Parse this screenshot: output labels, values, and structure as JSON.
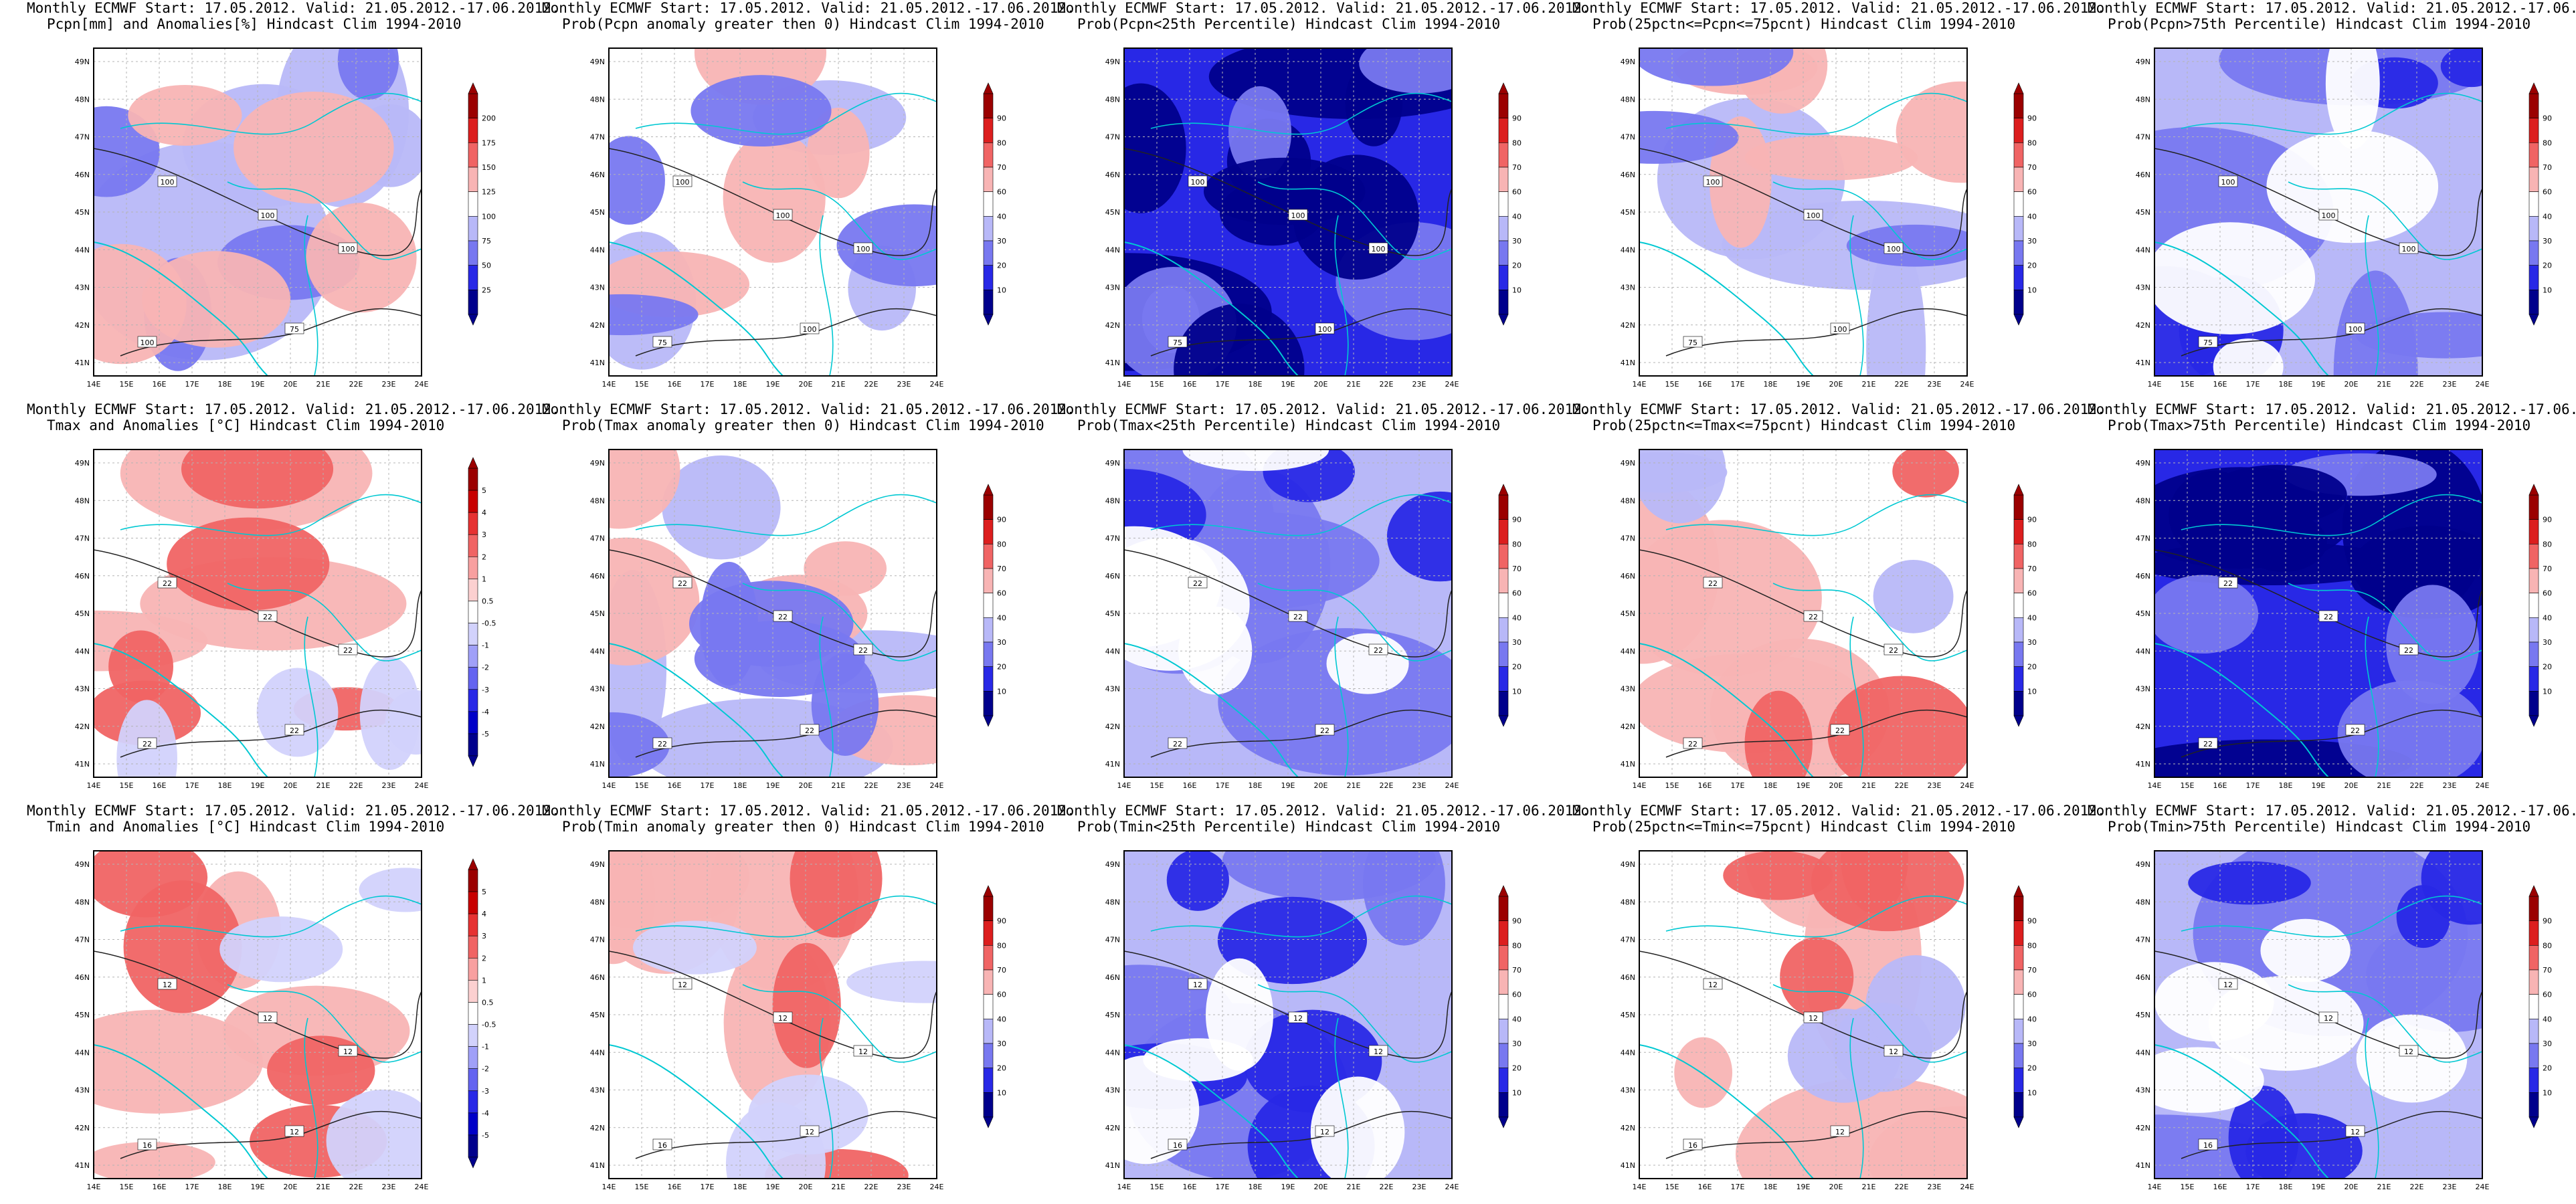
{
  "figure": {
    "header": "Monthly ECMWF Start: 17.05.2012. Valid: 21.05.2012.-17.06.2012.",
    "x_ticks": [
      "14E",
      "15E",
      "16E",
      "17E",
      "18E",
      "19E",
      "20E",
      "21E",
      "22E",
      "23E",
      "24E"
    ],
    "y_ticks": [
      "41N",
      "42N",
      "43N",
      "44N",
      "45N",
      "46N",
      "47N",
      "48N",
      "49N"
    ],
    "colors": {
      "lake": "#00c8d2",
      "contour": "#222222",
      "frame": "#000000",
      "grid": "#b4b4b4"
    },
    "legends": {
      "prob": {
        "labels": [
          "90",
          "80",
          "70",
          "60",
          "40",
          "30",
          "20",
          "10"
        ],
        "colors": [
          "#9b0000",
          "#dc1e1e",
          "#f06464",
          "#f8b4b4",
          "#ffffff",
          "#b8b8f8",
          "#7878f0",
          "#2828e6",
          "#00008c"
        ]
      },
      "pcpn": {
        "labels": [
          "200",
          "175",
          "150",
          "125",
          "100",
          "75",
          "50",
          "25"
        ],
        "colors": [
          "#9b0000",
          "#dc1e1e",
          "#f06464",
          "#f8b4b4",
          "#ffffff",
          "#b8b8f8",
          "#7878f0",
          "#2828e6",
          "#00008c"
        ]
      },
      "temp": {
        "labels": [
          "5",
          "4",
          "3",
          "2",
          "1",
          "0.5",
          "-0.5",
          "-1",
          "-2",
          "-3",
          "-4",
          "-5"
        ],
        "colors": [
          "#9b0000",
          "#c80000",
          "#e63232",
          "#f06464",
          "#f8a0a0",
          "#fcd0d0",
          "#ffffff",
          "#d2d2fc",
          "#a0a0f8",
          "#6464f0",
          "#2828e6",
          "#0000c8",
          "#00008c"
        ]
      }
    },
    "panels": [
      {
        "row": 0,
        "col": 0,
        "subtitle": "Pcpn[mm] and Anomalies[%] Hindcast Clim 1994-2010",
        "legend": "pcpn",
        "palette": "anomaly",
        "contour_labels": [
          "100",
          "100",
          "100",
          "75",
          "100"
        ]
      },
      {
        "row": 0,
        "col": 1,
        "subtitle": "Prob(Pcpn anomaly greater then 0) Hindcast Clim 1994-2010",
        "legend": "prob",
        "palette": "mixed",
        "contour_labels": [
          "100",
          "100",
          "100",
          "100",
          "75"
        ]
      },
      {
        "row": 0,
        "col": 2,
        "subtitle": "Prob(Pcpn<25th Percentile) Hindcast Clim 1994-2010",
        "legend": "prob",
        "palette": "deepblue",
        "contour_labels": [
          "100",
          "100",
          "100",
          "100",
          "75"
        ]
      },
      {
        "row": 0,
        "col": 3,
        "subtitle": "Prob(25pctn<=Pcpn<=75pcnt) Hindcast Clim 1994-2010",
        "legend": "prob",
        "palette": "mixed",
        "contour_labels": [
          "100",
          "100",
          "100",
          "100",
          "75"
        ]
      },
      {
        "row": 0,
        "col": 4,
        "subtitle": "Prob(Pcpn>75th Percentile) Hindcast Clim 1994-2010",
        "legend": "prob",
        "palette": "blue",
        "contour_labels": [
          "100",
          "100",
          "100",
          "100",
          "75"
        ]
      },
      {
        "row": 1,
        "col": 0,
        "subtitle": "Tmax and Anomalies [°C] Hindcast Clim 1994-2010",
        "legend": "temp",
        "palette": "warm",
        "contour_labels": [
          "22",
          "22",
          "22",
          "22",
          "22"
        ]
      },
      {
        "row": 1,
        "col": 1,
        "subtitle": "Prob(Tmax anomaly greater then 0) Hindcast Clim 1994-2010",
        "legend": "prob",
        "palette": "mixed",
        "contour_labels": [
          "22",
          "22",
          "22",
          "22",
          "22"
        ]
      },
      {
        "row": 1,
        "col": 2,
        "subtitle": "Prob(Tmax<25th Percentile) Hindcast Clim 1994-2010",
        "legend": "prob",
        "palette": "blue",
        "contour_labels": [
          "22",
          "22",
          "22",
          "22",
          "22"
        ]
      },
      {
        "row": 1,
        "col": 3,
        "subtitle": "Prob(25pctn<=Tmax<=75pcnt) Hindcast Clim 1994-2010",
        "legend": "prob",
        "palette": "red",
        "contour_labels": [
          "22",
          "22",
          "22",
          "22",
          "22"
        ]
      },
      {
        "row": 1,
        "col": 4,
        "subtitle": "Prob(Tmax>75th Percentile) Hindcast Clim 1994-2010",
        "legend": "prob",
        "palette": "deepblue",
        "contour_labels": [
          "22",
          "22",
          "22",
          "22",
          "22"
        ]
      },
      {
        "row": 2,
        "col": 0,
        "subtitle": "Tmin and Anomalies [°C] Hindcast Clim 1994-2010",
        "legend": "temp",
        "palette": "warm",
        "contour_labels": [
          "12",
          "12",
          "12",
          "12",
          "16"
        ]
      },
      {
        "row": 2,
        "col": 1,
        "subtitle": "Prob(Tmin anomaly greater then 0) Hindcast Clim 1994-2010",
        "legend": "prob",
        "palette": "warm",
        "contour_labels": [
          "12",
          "12",
          "12",
          "12",
          "16"
        ]
      },
      {
        "row": 2,
        "col": 2,
        "subtitle": "Prob(Tmin<25th Percentile) Hindcast Clim 1994-2010",
        "legend": "prob",
        "palette": "blue",
        "contour_labels": [
          "12",
          "12",
          "12",
          "12",
          "16"
        ]
      },
      {
        "row": 2,
        "col": 3,
        "subtitle": "Prob(25pctn<=Tmin<=75pcnt) Hindcast Clim 1994-2010",
        "legend": "prob",
        "palette": "red",
        "contour_labels": [
          "12",
          "12",
          "12",
          "12",
          "16"
        ]
      },
      {
        "row": 2,
        "col": 4,
        "subtitle": "Prob(Tmin>75th Percentile) Hindcast Clim 1994-2010",
        "legend": "prob",
        "palette": "blue",
        "contour_labels": [
          "12",
          "12",
          "12",
          "12",
          "16"
        ]
      }
    ]
  }
}
